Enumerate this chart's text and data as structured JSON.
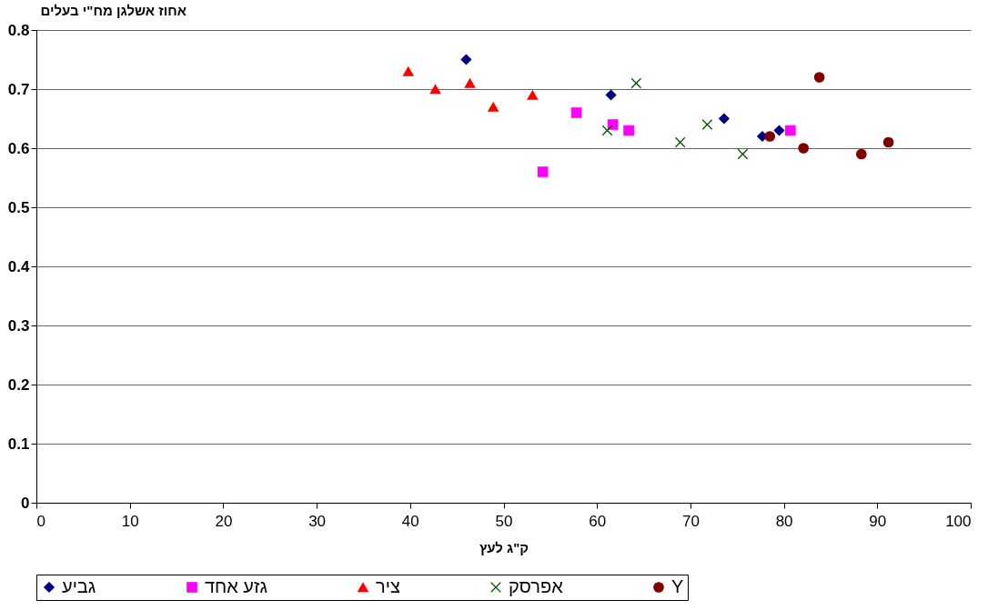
{
  "chart_data": {
    "type": "scatter",
    "xlabel": "ק\"ג לעץ",
    "ylabel": "אחוז אשלגן מח\"י בעלים",
    "xlim": [
      0,
      100
    ],
    "xticks": [
      0,
      10,
      20,
      30,
      40,
      50,
      60,
      70,
      80,
      90,
      100
    ],
    "ylim": [
      0,
      0.8
    ],
    "yticks": [
      0,
      0.1,
      0.2,
      0.3,
      0.4,
      0.5,
      0.6,
      0.7,
      0.8
    ],
    "grid": "y",
    "legend": "bottom",
    "series": [
      {
        "name": "גביע",
        "color": "#000080",
        "marker": "diamond",
        "x": [
          46.0,
          61.5,
          73.6,
          77.7,
          79.5
        ],
        "values": [
          0.75,
          0.69,
          0.65,
          0.62,
          0.63
        ]
      },
      {
        "name": "גזע אחד",
        "color": "#ff00ff",
        "marker": "square",
        "x": [
          54.2,
          57.8,
          61.7,
          63.4,
          80.7
        ],
        "values": [
          0.56,
          0.66,
          0.64,
          0.63,
          0.63
        ]
      },
      {
        "name": "ציר",
        "color": "#ff0000",
        "marker": "triangle",
        "x": [
          39.8,
          42.7,
          46.4,
          48.9,
          53.1
        ],
        "values": [
          0.73,
          0.7,
          0.71,
          0.67,
          0.69
        ]
      },
      {
        "name": "אפרסק",
        "color": "#004d00",
        "marker": "cross",
        "x": [
          61.1,
          64.2,
          68.9,
          71.8,
          75.6
        ],
        "values": [
          0.63,
          0.71,
          0.61,
          0.64,
          0.59
        ]
      },
      {
        "name": "Y",
        "color": "#800000",
        "marker": "circle",
        "x": [
          78.5,
          83.8,
          82.1,
          88.3,
          91.2
        ],
        "values": [
          0.62,
          0.72,
          0.6,
          0.59,
          0.61
        ]
      }
    ]
  }
}
